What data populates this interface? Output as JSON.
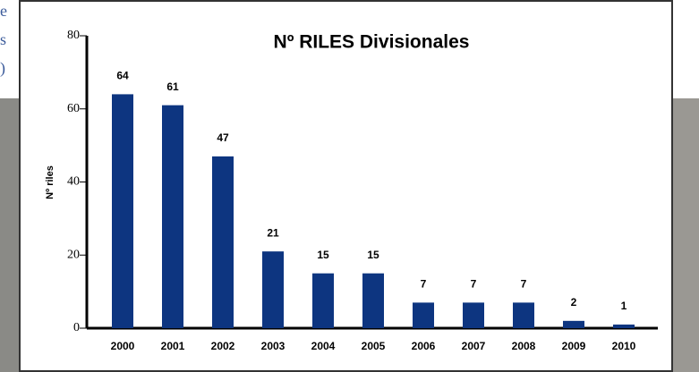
{
  "side_text": [
    "e",
    "s",
    ")"
  ],
  "chart_data": {
    "type": "bar",
    "title": "Nº RILES Divisionales",
    "y_label": "Nº riles",
    "categories": [
      "2000",
      "2001",
      "2002",
      "2003",
      "2004",
      "2005",
      "2006",
      "2007",
      "2008",
      "2009",
      "2010"
    ],
    "values": [
      64,
      61,
      47,
      21,
      15,
      15,
      7,
      7,
      7,
      2,
      1
    ],
    "color": "#0d3580",
    "ylim": [
      0,
      80
    ],
    "yticks": [
      0,
      20,
      40,
      60,
      80
    ],
    "grid": false
  }
}
